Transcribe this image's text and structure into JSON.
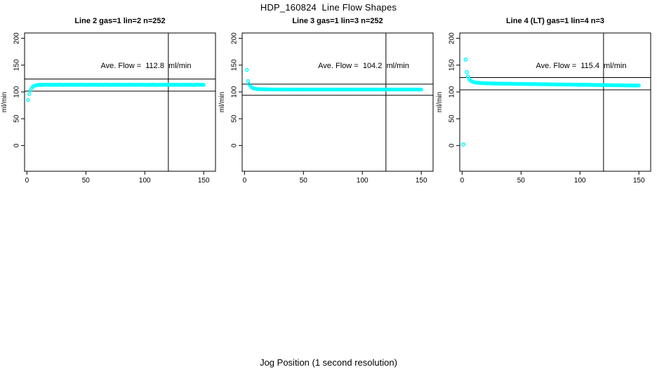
{
  "figure": {
    "title": "HDP_160824  Line Flow Shapes",
    "xlabel": "Jog Position (1 second resolution)",
    "background_color": "#ffffff",
    "point_color": "#00ffff",
    "line_color": "#000000"
  },
  "chart_data": [
    {
      "type": "scatter",
      "title": "Line 2 gas=1 lin=2 n=252",
      "ylabel": "ml/min",
      "annotation": "Ave. Flow =  112.8  ml/min",
      "ave_flow_ml_min": 112.8,
      "x_ticks": [
        0,
        50,
        100,
        150
      ],
      "y_ticks": [
        0,
        50,
        100,
        150,
        200
      ],
      "xlim": [
        -2,
        160
      ],
      "ylim": [
        -48,
        210
      ],
      "grid": false,
      "hlines": [
        101.5,
        124.1
      ],
      "vline_x": 120,
      "marker": {
        "shape": "open-circle",
        "color": "#00ffff"
      },
      "series": {
        "name": "flow",
        "x_start": 1,
        "x_step": 1,
        "y": [
          84.8,
          96.1,
          102.9,
          107,
          109.5,
          111.1,
          112,
          112.6,
          112.9,
          113.1,
          113.2,
          113.4,
          113.3,
          113.5,
          113.2,
          113.4,
          113.6,
          113.3,
          113.4,
          113.2,
          113.2,
          113.4,
          113.3,
          113.5,
          113.2,
          113.4,
          113.6,
          113.3,
          113.4,
          113.2,
          113.2,
          113.4,
          113.3,
          113.5,
          113.2,
          113.4,
          113.6,
          113.3,
          113.4,
          113.2,
          113.2,
          113.4,
          113.3,
          113.5,
          113.2,
          113.4,
          113.6,
          113.3,
          113.4,
          113.2,
          113.2,
          113.4,
          113.3,
          113.5,
          113.2,
          113.4,
          113.6,
          113.3,
          113.4,
          113.2,
          113.2,
          113.4,
          113.3,
          113.5,
          113.2,
          113.4,
          113.6,
          113.3,
          113.4,
          113.2,
          113.2,
          113.4,
          113.3,
          113.5,
          113.2,
          113.4,
          113.6,
          113.3,
          113.4,
          113.2,
          113.2,
          113.4,
          113.3,
          113.5,
          113.2,
          113.4,
          113.6,
          113.3,
          113.4,
          113.2,
          113.2,
          113.4,
          113.3,
          113.5,
          113.2,
          113.4,
          113.6,
          113.3,
          113.4,
          113.2,
          113.2,
          113.4,
          113.3,
          113.5,
          113.2,
          113.4,
          113.6,
          113.3,
          113.4,
          113.2,
          113.2,
          113.4,
          113.3,
          113.5,
          113.2,
          113.4,
          113.6,
          113.3,
          113.4,
          113.2,
          113.2,
          113.4,
          113.3,
          113.5,
          113.2,
          113.4,
          113.6,
          113.3,
          113.4,
          113.2,
          113.2,
          113.4,
          113.3,
          113.5,
          113.2,
          113.4,
          113.6,
          113.3,
          113.4,
          113.2,
          113.2,
          113.4,
          113.3,
          113.5,
          113.2,
          113.4,
          113.6,
          113.3,
          113.4,
          113.2
        ]
      },
      "extra_points": []
    },
    {
      "type": "scatter",
      "title": "Line 3 gas=1 lin=3 n=252",
      "ylabel": "ml/min",
      "annotation": "Ave. Flow =  104.2  ml/min",
      "ave_flow_ml_min": 104.2,
      "x_ticks": [
        0,
        50,
        100,
        150
      ],
      "y_ticks": [
        0,
        50,
        100,
        150,
        200
      ],
      "xlim": [
        -2,
        160
      ],
      "ylim": [
        -48,
        210
      ],
      "grid": false,
      "hlines": [
        93.8,
        114.6
      ],
      "vline_x": 120,
      "marker": {
        "shape": "open-circle",
        "color": "#00ffff"
      },
      "series": {
        "name": "flow",
        "x_start": 2,
        "x_step": 1,
        "y": [
          141.2,
          120.3,
          114,
          110.6,
          108.6,
          107.3,
          106.5,
          106,
          105.6,
          105.4,
          105.2,
          105.1,
          105.1,
          105,
          105,
          104.9,
          104.9,
          104.8,
          104.8,
          104.8,
          104.7,
          104.7,
          104.7,
          104.6,
          104.6,
          104.6,
          104.6,
          104.5,
          104.5,
          104.5,
          104.6,
          104.4,
          104.5,
          104.6,
          104.5,
          104.4,
          104.5,
          104.6,
          104.5,
          104.5,
          104.6,
          104.4,
          104.5,
          104.6,
          104.5,
          104.4,
          104.5,
          104.6,
          104.5,
          104.5,
          104.6,
          104.4,
          104.5,
          104.6,
          104.5,
          104.4,
          104.5,
          104.6,
          104.5,
          104.5,
          104.6,
          104.4,
          104.5,
          104.6,
          104.5,
          104.4,
          104.5,
          104.6,
          104.5,
          104.5,
          104.6,
          104.4,
          104.5,
          104.6,
          104.5,
          104.4,
          104.5,
          104.6,
          104.5,
          104.5,
          104.6,
          104.4,
          104.5,
          104.6,
          104.5,
          104.4,
          104.5,
          104.6,
          104.5,
          104.5,
          104.6,
          104.4,
          104.5,
          104.6,
          104.5,
          104.4,
          104.5,
          104.6,
          104.5,
          104.5,
          104.6,
          104.4,
          104.5,
          104.6,
          104.5,
          104.4,
          104.5,
          104.6,
          104.5,
          104.5,
          104.6,
          104.4,
          104.5,
          104.6,
          104.5,
          104.4,
          104.5,
          104.6,
          104.5,
          104.5,
          104.6,
          104.4,
          104.5,
          104.6,
          104.5,
          104.4,
          104.5,
          104.6,
          104.5,
          104.5,
          104.6,
          104.4,
          104.5,
          104.6,
          104.5,
          104.4,
          104.5,
          104.6,
          104.5,
          104.5,
          104.6,
          104.4,
          104.5,
          104.6,
          104.5,
          104.4,
          104.5,
          104.6,
          104.5
        ]
      },
      "extra_points": []
    },
    {
      "type": "scatter",
      "title": "Line 4 (LT) gas=1 lin=4 n=3",
      "ylabel": "ml/min",
      "annotation": "Ave. Flow =  115.4  ml/min",
      "ave_flow_ml_min": 115.4,
      "x_ticks": [
        0,
        50,
        100,
        150
      ],
      "y_ticks": [
        0,
        50,
        100,
        150,
        200
      ],
      "xlim": [
        -2,
        160
      ],
      "ylim": [
        -48,
        210
      ],
      "grid": false,
      "hlines": [
        103.9,
        126.9
      ],
      "vline_x": 120,
      "marker": {
        "shape": "open-circle",
        "color": "#00ffff"
      },
      "series": {
        "name": "flow",
        "x_start": 6,
        "x_step": 1,
        "y": [
          124,
          121.5,
          120,
          119,
          118.3,
          117.8,
          117.5,
          117.2,
          117,
          116.8,
          116.7,
          116.5,
          116.4,
          116.3,
          116.2,
          116.1,
          116,
          116,
          115.9,
          115.9,
          115.8,
          115.8,
          115.7,
          115.7,
          115.6,
          115.6,
          115.6,
          115.5,
          115.5,
          115.5,
          115.4,
          115.4,
          115.4,
          115.3,
          115.3,
          115.2,
          115.4,
          115,
          115.3,
          115.1,
          114.9,
          115.2,
          115,
          114.8,
          115.1,
          114.9,
          115.1,
          114.7,
          115,
          114.8,
          114.6,
          114.9,
          114.7,
          114.5,
          114.8,
          114.6,
          114.8,
          114.4,
          114.7,
          114.5,
          114.3,
          114.6,
          114.4,
          114.2,
          114.5,
          114.3,
          114.5,
          114.1,
          114.4,
          114.2,
          114,
          114.3,
          114.1,
          113.9,
          114.2,
          114,
          114.2,
          113.8,
          114.1,
          113.9,
          113.7,
          114,
          113.8,
          113.6,
          113.9,
          113.7,
          113.9,
          113.5,
          113.8,
          113.6,
          113.4,
          113.7,
          113.5,
          113.3,
          113.6,
          113.4,
          113.6,
          113.2,
          113.5,
          113.3,
          113.1,
          113.4,
          113.2,
          113,
          113.3,
          113.1,
          113.3,
          112.9,
          113.2,
          113,
          112.8,
          113.1,
          112.9,
          112.7,
          113,
          112.8,
          113,
          112.6,
          112.9,
          112.7,
          112.5,
          112.8,
          112.6,
          112.4,
          112.7,
          112.5,
          112.7,
          112.3,
          112.6,
          112.4,
          112.2,
          112.5,
          112.3,
          112.1,
          112.4,
          112.2,
          112.4,
          112,
          112.3,
          112.1,
          111.9,
          112.2,
          112,
          111.8,
          112.1
        ]
      },
      "extra_points": [
        [
          1,
          2.0
        ],
        [
          3,
          160.5
        ],
        [
          4,
          137.0
        ],
        [
          5,
          128.5
        ]
      ]
    }
  ]
}
